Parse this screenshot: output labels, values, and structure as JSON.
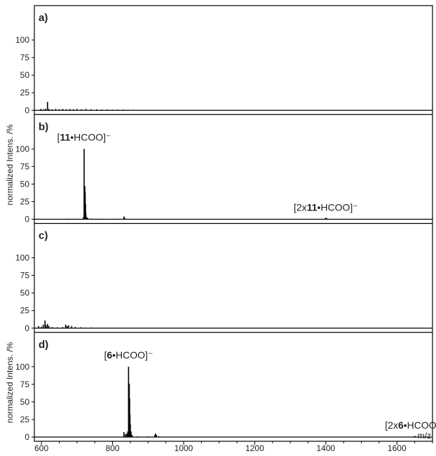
{
  "chart_data": {
    "type": "line",
    "xlabel": "m/z",
    "ylabel": "normalized Intens. /%",
    "xlim": [
      580,
      1700
    ],
    "ylim": [
      0,
      115
    ],
    "x_ticks": [
      "600",
      "800",
      "1000",
      "1200",
      "1400",
      "1600"
    ],
    "y_ticks": [
      "0",
      "25",
      "50",
      "75",
      "100"
    ],
    "grid": false,
    "panels": [
      {
        "label": "a)",
        "show_ylabel": false,
        "peaks": [
          [
            598,
            2
          ],
          [
            606,
            1.5
          ],
          [
            612,
            2.5
          ],
          [
            617,
            12
          ],
          [
            621,
            2
          ],
          [
            630,
            1.5
          ],
          [
            640,
            2
          ],
          [
            650,
            1.5
          ],
          [
            660,
            2
          ],
          [
            670,
            1.5
          ],
          [
            680,
            2
          ],
          [
            690,
            1.5
          ],
          [
            700,
            2
          ],
          [
            712,
            1.5
          ],
          [
            725,
            2
          ],
          [
            740,
            1.5
          ],
          [
            755,
            1.5
          ],
          [
            770,
            1.2
          ],
          [
            785,
            1.2
          ],
          [
            800,
            1
          ],
          [
            815,
            1
          ],
          [
            830,
            1
          ],
          [
            845,
            0.8
          ],
          [
            860,
            0.8
          ],
          [
            880,
            0.6
          ],
          [
            900,
            0.5
          ],
          [
            920,
            0.4
          ],
          [
            950,
            0.3
          ],
          [
            990,
            0.3
          ],
          [
            1030,
            0.2
          ],
          [
            1080,
            0.2
          ],
          [
            1150,
            0.2
          ],
          [
            1250,
            0.2
          ],
          [
            1400,
            0.2
          ],
          [
            1550,
            0.2
          ],
          [
            1650,
            0.2
          ]
        ],
        "annotations": []
      },
      {
        "label": "b)",
        "show_ylabel": true,
        "peaks": [
          [
            672,
            0.8
          ],
          [
            700,
            0.6
          ],
          [
            718,
            3
          ],
          [
            720,
            100
          ],
          [
            721,
            10
          ],
          [
            722,
            47
          ],
          [
            723,
            38
          ],
          [
            724,
            22
          ],
          [
            725,
            8
          ],
          [
            727,
            3
          ],
          [
            730,
            2
          ],
          [
            740,
            1
          ],
          [
            760,
            0.8
          ],
          [
            800,
            0.6
          ],
          [
            832,
            4
          ],
          [
            834,
            2
          ],
          [
            900,
            0.4
          ],
          [
            1000,
            0.3
          ],
          [
            1100,
            0.3
          ],
          [
            1200,
            0.3
          ],
          [
            1300,
            0.3
          ],
          [
            1398,
            1
          ],
          [
            1400,
            2
          ],
          [
            1402,
            1.5
          ],
          [
            1500,
            0.3
          ],
          [
            1600,
            0.3
          ]
        ],
        "annotations": [
          {
            "x": 720,
            "pre": "[",
            "bold": "11",
            "post": "•HCOO]⁻"
          },
          {
            "x": 1400,
            "pre": "[2x",
            "bold": "11",
            "post": "•HCOO]⁻"
          }
        ]
      },
      {
        "label": "c)",
        "show_ylabel": false,
        "peaks": [
          [
            592,
            3
          ],
          [
            600,
            2
          ],
          [
            605,
            5
          ],
          [
            610,
            11
          ],
          [
            613,
            4
          ],
          [
            617,
            6
          ],
          [
            621,
            3
          ],
          [
            630,
            1.5
          ],
          [
            645,
            1.2
          ],
          [
            660,
            1.5
          ],
          [
            668,
            5
          ],
          [
            672,
            3
          ],
          [
            676,
            4
          ],
          [
            685,
            3
          ],
          [
            695,
            1.5
          ],
          [
            710,
            1.2
          ],
          [
            740,
            1
          ],
          [
            770,
            0.8
          ],
          [
            800,
            0.8
          ],
          [
            850,
            0.6
          ],
          [
            900,
            0.5
          ],
          [
            950,
            0.4
          ],
          [
            1000,
            0.3
          ],
          [
            1100,
            0.3
          ],
          [
            1200,
            0.3
          ],
          [
            1300,
            0.2
          ],
          [
            1400,
            0.2
          ],
          [
            1500,
            0.2
          ],
          [
            1600,
            0.2
          ]
        ],
        "annotations": []
      },
      {
        "label": "d)",
        "show_ylabel": true,
        "peaks": [
          [
            832,
            7
          ],
          [
            836,
            4
          ],
          [
            840,
            5
          ],
          [
            843,
            8
          ],
          [
            845,
            100
          ],
          [
            846,
            12
          ],
          [
            847,
            76
          ],
          [
            848,
            55
          ],
          [
            849,
            32
          ],
          [
            850,
            18
          ],
          [
            852,
            8
          ],
          [
            855,
            3
          ],
          [
            870,
            1
          ],
          [
            900,
            1
          ],
          [
            919,
            3
          ],
          [
            921,
            5
          ],
          [
            923,
            3
          ],
          [
            930,
            1
          ],
          [
            1000,
            0.6
          ],
          [
            1100,
            0.4
          ],
          [
            1200,
            0.3
          ],
          [
            1300,
            0.3
          ],
          [
            1400,
            0.3
          ],
          [
            1500,
            0.3
          ],
          [
            1600,
            0.3
          ],
          [
            1648,
            0.8
          ],
          [
            1650,
            1.5
          ],
          [
            1652,
            1
          ]
        ],
        "annotations": [
          {
            "x": 845,
            "pre": "[",
            "bold": "6",
            "post": "•HCOO]⁻"
          },
          {
            "x": 1650,
            "pre": "[2x",
            "bold": "6",
            "post": "•HCOO]⁻"
          }
        ]
      }
    ]
  }
}
